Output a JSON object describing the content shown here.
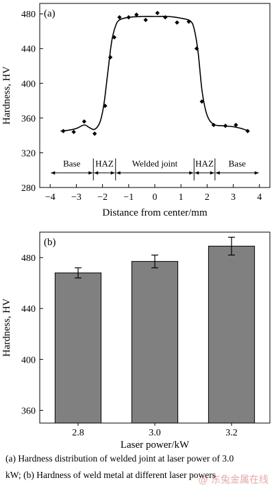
{
  "chart_data": [
    {
      "type": "scatter",
      "panel_label": "(a)",
      "xlabel": "Distance from center/mm",
      "ylabel": "Hardness, HV",
      "xlim": [
        -4.4,
        4.4
      ],
      "ylim": [
        280,
        492
      ],
      "xticks": [
        -4,
        -3,
        -2,
        -1,
        0,
        1,
        2,
        3,
        4
      ],
      "yticks": [
        280,
        320,
        360,
        400,
        440,
        480
      ],
      "x": [
        -3.5,
        -3.1,
        -2.7,
        -2.3,
        -1.9,
        -1.7,
        -1.55,
        -1.35,
        -1.0,
        -0.7,
        -0.35,
        0.1,
        0.4,
        0.85,
        1.3,
        1.6,
        1.8,
        2.25,
        2.7,
        3.1,
        3.55
      ],
      "y": [
        345,
        344,
        356,
        342,
        374,
        430,
        453,
        476,
        476,
        479,
        473,
        481,
        476,
        470,
        471,
        440,
        379,
        352,
        351,
        352,
        345
      ],
      "curve_x": [
        -3.6,
        -3.3,
        -3.0,
        -2.7,
        -2.5,
        -2.3,
        -2.1,
        -1.95,
        -1.8,
        -1.65,
        -1.5,
        -1.35,
        -1.0,
        -0.5,
        0.0,
        0.5,
        1.0,
        1.35,
        1.5,
        1.65,
        1.8,
        1.95,
        2.1,
        2.3,
        2.6,
        3.0,
        3.3,
        3.6
      ],
      "curve_y": [
        345,
        346,
        348,
        352,
        349,
        347,
        355,
        375,
        412,
        448,
        466,
        473,
        476,
        477,
        477,
        477,
        475,
        472,
        463,
        437,
        393,
        368,
        357,
        352,
        351,
        350,
        348,
        345
      ],
      "zones": [
        {
          "label": "Base",
          "from": -4.0,
          "to": -2.35
        },
        {
          "label": "HAZ",
          "from": -2.35,
          "to": -1.5
        },
        {
          "label": "Welded joint",
          "from": -1.5,
          "to": 1.5
        },
        {
          "label": "HAZ",
          "from": 1.5,
          "to": 2.3
        },
        {
          "label": "Base",
          "from": 2.3,
          "to": 4.0
        }
      ],
      "zone_y": 300,
      "marker_color": "#000000"
    },
    {
      "type": "bar",
      "panel_label": "(b)",
      "xlabel": "Laser power/kW",
      "ylabel": "Hardness, HV",
      "categories": [
        "2.8",
        "3.0",
        "3.2"
      ],
      "values": [
        468,
        477,
        489
      ],
      "errors": [
        4,
        5,
        7
      ],
      "ylim": [
        350,
        500
      ],
      "yticks": [
        360,
        400,
        440,
        480
      ],
      "bar_color": "#808080"
    }
  ],
  "caption": {
    "line1": "(a) Hardness distribution of welded joint at laser power of 3.0",
    "line2": "kW; (b) Hardness of weld metal at different laser powers"
  },
  "watermark": "@ 东兔金属在线"
}
